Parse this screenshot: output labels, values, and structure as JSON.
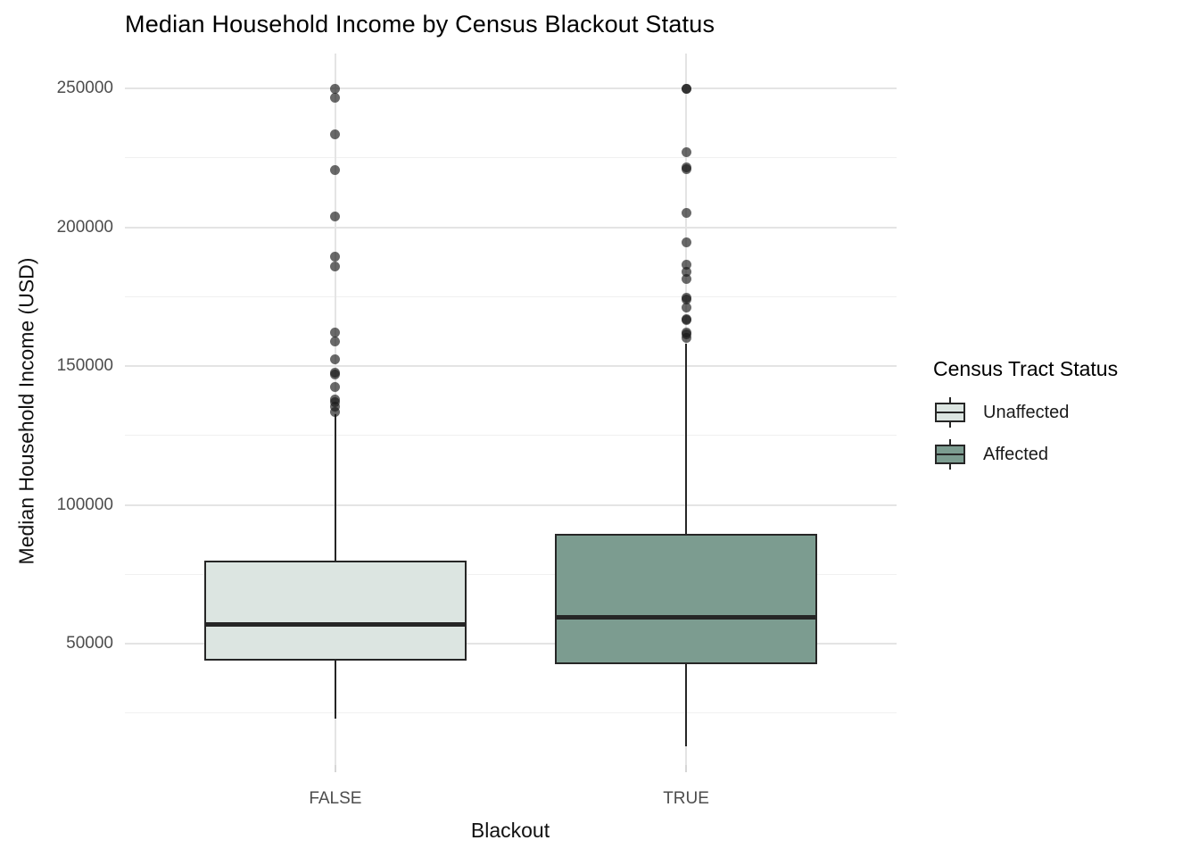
{
  "chart_data": {
    "type": "boxplot",
    "title": "Median Household Income by Census Blackout Status",
    "xlabel": "Blackout",
    "ylabel": "Median Household Income (USD)",
    "y_axis": {
      "major_ticks": [
        50000,
        100000,
        150000,
        200000,
        250000
      ],
      "minor_ticks": [
        25000,
        75000,
        125000,
        175000,
        225000
      ],
      "tick_labels": [
        "50000",
        "100000",
        "150000",
        "200000",
        "250000"
      ],
      "range_shown": [
        7000,
        262000
      ],
      "grid": "major and minor horizontal, vertical at categories"
    },
    "categories": [
      "FALSE",
      "TRUE"
    ],
    "groups": [
      {
        "category": "FALSE",
        "status": "Unaffected",
        "fill": "#dce5e1",
        "stats": {
          "whisker_low": 23000,
          "q1": 44000,
          "median": 57000,
          "q3": 80000,
          "whisker_high": 132500
        },
        "outliers": [
          250000,
          246500,
          233500,
          220500,
          204000,
          189500,
          186000,
          162000,
          159000,
          152500,
          147500,
          147000,
          142500,
          138000,
          137000,
          135500,
          133500
        ]
      },
      {
        "category": "TRUE",
        "status": "Affected",
        "fill": "#7c9c90",
        "stats": {
          "whisker_low": 13000,
          "q1": 42500,
          "median": 59500,
          "q3": 89500,
          "whisker_high": 158000
        },
        "outliers": [
          250000,
          250000,
          227000,
          221500,
          221000,
          205000,
          194500,
          186500,
          184000,
          181500,
          174500,
          174000,
          171000,
          167000,
          166500,
          162000,
          161500,
          160000
        ]
      }
    ],
    "legend": {
      "title": "Census Tract Status",
      "position": "right",
      "entries": [
        {
          "label": "Unaffected",
          "color": "#dce5e1"
        },
        {
          "label": "Affected",
          "color": "#7c9c90"
        }
      ]
    },
    "colors": {
      "box_border": "#262626",
      "median_line": "#262626",
      "whisker": "#262626",
      "outlier_point": "rgba(25,25,25,0.65)",
      "grid_major": "#e4e4e4",
      "grid_minor": "#f0f0f0",
      "tick_label": "#4d4d4d",
      "background": "#ffffff"
    }
  }
}
